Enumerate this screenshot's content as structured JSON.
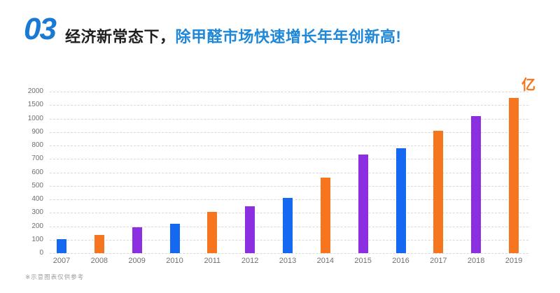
{
  "header": {
    "section_number": "03",
    "title_prefix": "经济新常态下，",
    "title_highlight": "除甲醛市场快速增长年年创新高!",
    "number_color": "#1a79d2",
    "highlight_color": "#1e87d8"
  },
  "chart_data": {
    "type": "bar",
    "title": "",
    "xlabel": "",
    "ylabel": "",
    "unit_label": "亿",
    "unit_label_color": "#f5731e",
    "categories": [
      "2007",
      "2008",
      "2009",
      "2010",
      "2011",
      "2012",
      "2013",
      "2014",
      "2015",
      "2016",
      "2017",
      "2018",
      "2019"
    ],
    "values": [
      105,
      135,
      190,
      220,
      305,
      350,
      410,
      560,
      730,
      780,
      910,
      1090,
      1765
    ],
    "y_ticks": [
      0,
      100,
      200,
      300,
      400,
      500,
      600,
      700,
      800,
      900,
      1000,
      1500,
      2000
    ],
    "y_axis_note": "non-linear axis: all 13 ticks evenly spaced (0-1000 by 100, then 1500, 2000)",
    "grid": true,
    "gridline_style": "dashed light gray",
    "legend": false,
    "palette": {
      "blue": "#1569f0",
      "orange": "#f5761f",
      "purple": "#8b2fe0"
    },
    "bar_color_sequence": [
      "blue",
      "orange",
      "purple",
      "blue",
      "orange",
      "purple",
      "blue",
      "orange",
      "purple",
      "blue",
      "orange",
      "purple",
      "orange"
    ]
  },
  "footnote": "※示意图表仅供参考"
}
